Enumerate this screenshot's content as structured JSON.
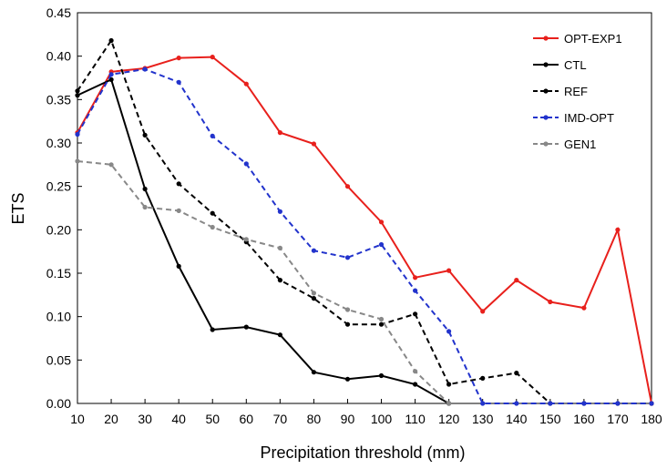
{
  "chart_data": {
    "type": "line",
    "xlabel": "Precipitation threshold (mm)",
    "ylabel": "ETS",
    "x": [
      10,
      20,
      30,
      40,
      50,
      60,
      70,
      80,
      90,
      100,
      110,
      120,
      130,
      140,
      150,
      160,
      170,
      180
    ],
    "xlim": [
      10,
      180
    ],
    "ylim": [
      0,
      0.45
    ],
    "y_ticks": [
      "0.00",
      "0.05",
      "0.10",
      "0.15",
      "0.20",
      "0.25",
      "0.30",
      "0.35",
      "0.40",
      "0.45"
    ],
    "x_ticks": [
      "10",
      "20",
      "30",
      "40",
      "50",
      "60",
      "70",
      "80",
      "90",
      "100",
      "110",
      "120",
      "130",
      "140",
      "150",
      "160",
      "170",
      "180"
    ],
    "grid": false,
    "legend_position": "top-right",
    "series": [
      {
        "name": "OPT-EXP1",
        "color": "#e8201c",
        "dash": "solid",
        "values": [
          0.312,
          0.382,
          0.386,
          0.398,
          0.399,
          0.368,
          0.312,
          0.299,
          0.25,
          0.209,
          0.145,
          0.153,
          0.106,
          0.142,
          0.117,
          0.11,
          0.2,
          0.0
        ]
      },
      {
        "name": "CTL",
        "color": "#000000",
        "dash": "solid",
        "values": [
          0.355,
          0.373,
          0.247,
          0.158,
          0.085,
          0.088,
          0.079,
          0.036,
          0.028,
          0.032,
          0.022,
          0.0,
          null,
          null,
          null,
          null,
          null,
          null
        ]
      },
      {
        "name": "REF",
        "color": "#000000",
        "dash": "dashed",
        "values": [
          0.36,
          0.418,
          0.309,
          0.253,
          0.219,
          0.186,
          0.142,
          0.121,
          0.091,
          0.091,
          0.103,
          0.022,
          0.029,
          0.035,
          0.0,
          0.0,
          0.0,
          0.0
        ]
      },
      {
        "name": "IMD-OPT",
        "color": "#2233cc",
        "dash": "dashed",
        "values": [
          0.31,
          0.379,
          0.385,
          0.37,
          0.308,
          0.276,
          0.221,
          0.176,
          0.168,
          0.183,
          0.13,
          0.083,
          0.0,
          0.0,
          0.0,
          0.0,
          0.0,
          0.0
        ]
      },
      {
        "name": "GEN1",
        "color": "#888888",
        "dash": "dashed",
        "values": [
          0.279,
          0.275,
          0.226,
          0.222,
          0.203,
          0.189,
          0.179,
          0.127,
          0.108,
          0.097,
          0.037,
          0.0,
          null,
          null,
          null,
          null,
          null,
          null
        ]
      }
    ]
  }
}
